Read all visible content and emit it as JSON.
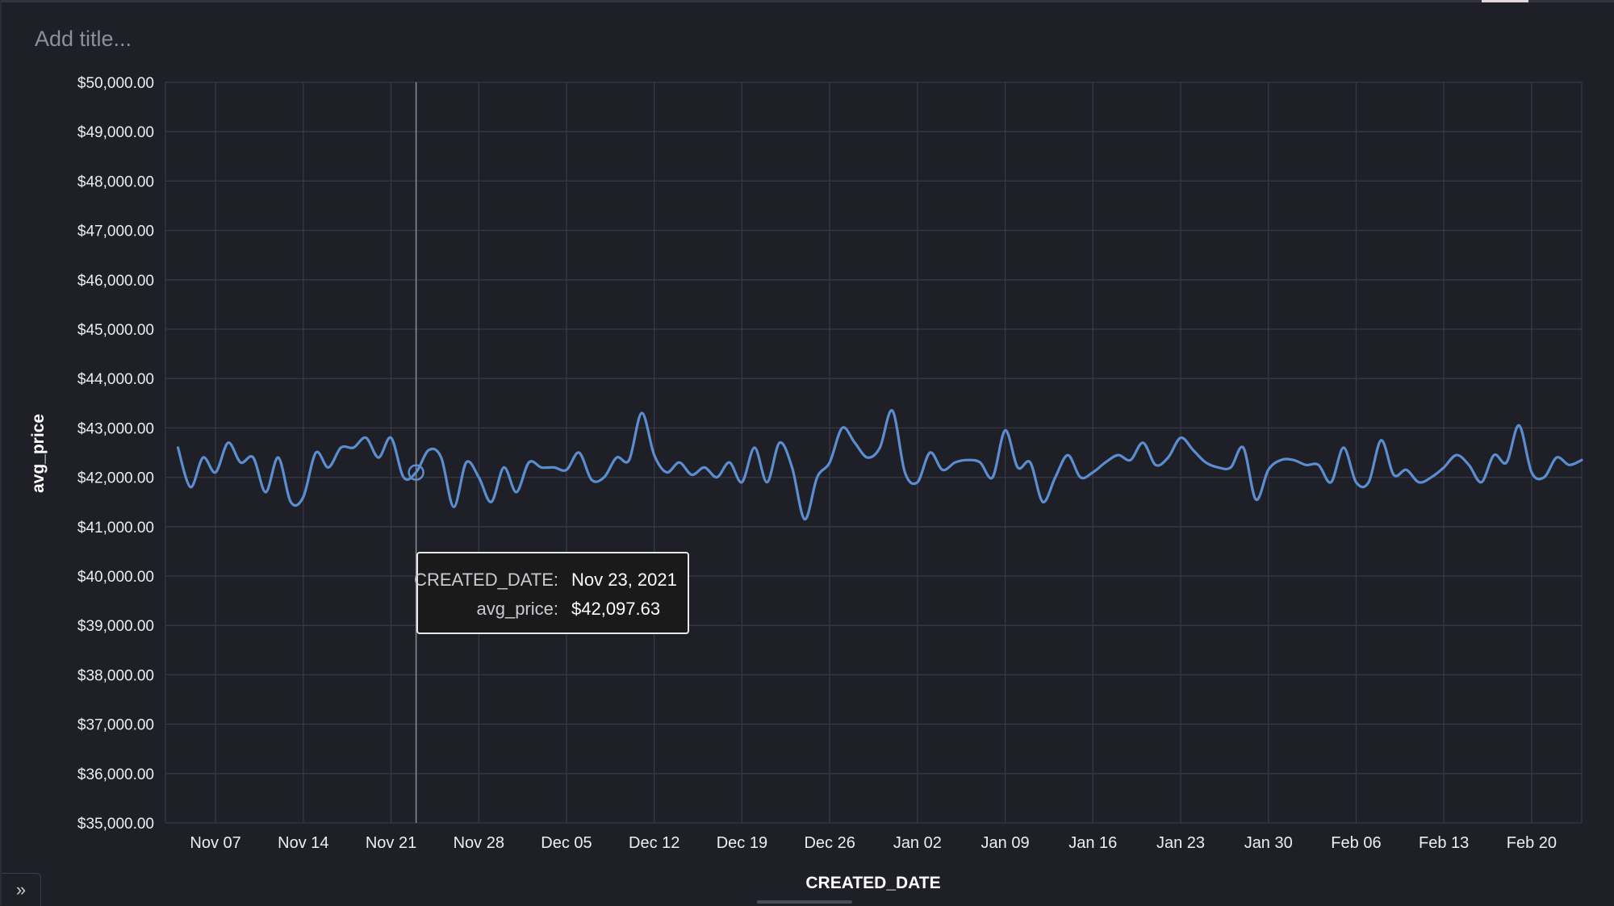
{
  "header": {
    "title_placeholder": "Add title...",
    "expand_icon_glyph": "»"
  },
  "tooltip": {
    "date_label": "CREATED_DATE:",
    "date_value": "Nov 23, 2021",
    "price_label": "avg_price:",
    "price_value": "$42,097.63"
  },
  "colors": {
    "background": "#1f1f28",
    "line": "#5b8ed0",
    "grid": "#363845"
  },
  "chart_data": {
    "type": "line",
    "title": "",
    "xlabel": "CREATED_DATE",
    "ylabel": "avg_price",
    "grid": true,
    "ylim": [
      35000,
      50000
    ],
    "xlim": [
      "2021-11-03",
      "2022-02-24"
    ],
    "y_ticks": [
      "$35,000.00",
      "$36,000.00",
      "$37,000.00",
      "$38,000.00",
      "$39,000.00",
      "$40,000.00",
      "$41,000.00",
      "$42,000.00",
      "$43,000.00",
      "$44,000.00",
      "$45,000.00",
      "$46,000.00",
      "$47,000.00",
      "$48,000.00",
      "$49,000.00",
      "$50,000.00"
    ],
    "x_ticks": [
      {
        "label": "Nov 07",
        "date": "2021-11-07"
      },
      {
        "label": "Nov 14",
        "date": "2021-11-14"
      },
      {
        "label": "Nov 21",
        "date": "2021-11-21"
      },
      {
        "label": "Nov 28",
        "date": "2021-11-28"
      },
      {
        "label": "Dec 05",
        "date": "2021-12-05"
      },
      {
        "label": "Dec 12",
        "date": "2021-12-12"
      },
      {
        "label": "Dec 19",
        "date": "2021-12-19"
      },
      {
        "label": "Dec 26",
        "date": "2021-12-26"
      },
      {
        "label": "Jan 02",
        "date": "2022-01-02"
      },
      {
        "label": "Jan 09",
        "date": "2022-01-09"
      },
      {
        "label": "Jan 16",
        "date": "2022-01-16"
      },
      {
        "label": "Jan 23",
        "date": "2022-01-23"
      },
      {
        "label": "Jan 30",
        "date": "2022-01-30"
      },
      {
        "label": "Feb 06",
        "date": "2022-02-06"
      },
      {
        "label": "Feb 13",
        "date": "2022-02-13"
      },
      {
        "label": "Feb 20",
        "date": "2022-02-20"
      }
    ],
    "highlight": {
      "x": "2021-11-23",
      "y": 42097.63
    },
    "series": [
      {
        "x": [
          "2021-11-04",
          "2021-11-05",
          "2021-11-06",
          "2021-11-07",
          "2021-11-08",
          "2021-11-09",
          "2021-11-10",
          "2021-11-11",
          "2021-11-12",
          "2021-11-13",
          "2021-11-14",
          "2021-11-15",
          "2021-11-16",
          "2021-11-17",
          "2021-11-18",
          "2021-11-19",
          "2021-11-20",
          "2021-11-21",
          "2021-11-22",
          "2021-11-23",
          "2021-11-24",
          "2021-11-25",
          "2021-11-26",
          "2021-11-27",
          "2021-11-28",
          "2021-11-29",
          "2021-11-30",
          "2021-12-01",
          "2021-12-02",
          "2021-12-03",
          "2021-12-04",
          "2021-12-05",
          "2021-12-06",
          "2021-12-07",
          "2021-12-08",
          "2021-12-09",
          "2021-12-10",
          "2021-12-11",
          "2021-12-12",
          "2021-12-13",
          "2021-12-14",
          "2021-12-15",
          "2021-12-16",
          "2021-12-17",
          "2021-12-18",
          "2021-12-19",
          "2021-12-20",
          "2021-12-21",
          "2021-12-22",
          "2021-12-23",
          "2021-12-24",
          "2021-12-25",
          "2021-12-26",
          "2021-12-27",
          "2021-12-28",
          "2021-12-29",
          "2021-12-30",
          "2021-12-31",
          "2022-01-01",
          "2022-01-02",
          "2022-01-03",
          "2022-01-04",
          "2022-01-05",
          "2022-01-06",
          "2022-01-07",
          "2022-01-08",
          "2022-01-09",
          "2022-01-10",
          "2022-01-11",
          "2022-01-12",
          "2022-01-13",
          "2022-01-14",
          "2022-01-15",
          "2022-01-16",
          "2022-01-17",
          "2022-01-18",
          "2022-01-19",
          "2022-01-20",
          "2022-01-21",
          "2022-01-22",
          "2022-01-23",
          "2022-01-24",
          "2022-01-25",
          "2022-01-26",
          "2022-01-27",
          "2022-01-28",
          "2022-01-29",
          "2022-01-30",
          "2022-01-31",
          "2022-02-01",
          "2022-02-02",
          "2022-02-03",
          "2022-02-04",
          "2022-02-05",
          "2022-02-06",
          "2022-02-07",
          "2022-02-08",
          "2022-02-09",
          "2022-02-10",
          "2022-02-11",
          "2022-02-12",
          "2022-02-13",
          "2022-02-14",
          "2022-02-15",
          "2022-02-16",
          "2022-02-17",
          "2022-02-18",
          "2022-02-19",
          "2022-02-20",
          "2022-02-21",
          "2022-02-22",
          "2022-02-23",
          "2022-02-24"
        ],
        "values": [
          42600,
          41800,
          42400,
          42100,
          42700,
          42300,
          42400,
          41700,
          42400,
          41500,
          41600,
          42500,
          42200,
          42600,
          42600,
          42800,
          42400,
          42800,
          42000,
          42100,
          42550,
          42400,
          41400,
          42300,
          42000,
          41500,
          42200,
          41700,
          42300,
          42200,
          42200,
          42150,
          42500,
          41950,
          42000,
          42400,
          42350,
          43300,
          42450,
          42100,
          42300,
          42050,
          42200,
          42000,
          42300,
          41900,
          42600,
          41900,
          42700,
          42200,
          41150,
          42000,
          42300,
          43000,
          42700,
          42400,
          42600,
          43350,
          42100,
          41900,
          42500,
          42150,
          42300,
          42350,
          42300,
          42000,
          42950,
          42200,
          42300,
          41500,
          42000,
          42450,
          42000,
          42100,
          42300,
          42450,
          42350,
          42700,
          42250,
          42400,
          42800,
          42550,
          42300,
          42200,
          42200,
          42600,
          41550,
          42150,
          42350,
          42350,
          42250,
          42250,
          41900,
          42600,
          41900,
          41900,
          42750,
          42050,
          42150,
          41900,
          42000,
          42200,
          42450,
          42250,
          41900,
          42450,
          42300,
          43050,
          42100,
          42000,
          42400,
          42250,
          42350
        ]
      }
    ]
  }
}
